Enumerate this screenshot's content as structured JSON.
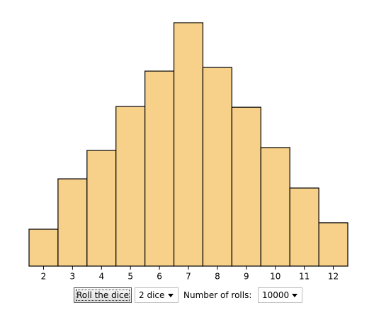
{
  "chart_data": {
    "type": "bar",
    "categories": [
      "2",
      "3",
      "4",
      "5",
      "6",
      "7",
      "8",
      "9",
      "10",
      "11",
      "12"
    ],
    "values": [
      257,
      608,
      806,
      1112,
      1359,
      1696,
      1384,
      1107,
      826,
      544,
      302
    ],
    "color": "#f7d08a"
  },
  "controls": {
    "button": "Roll the dice",
    "dice_select": "2 dice",
    "rolls_label": "Number of rolls:",
    "rolls_select": "10000"
  }
}
